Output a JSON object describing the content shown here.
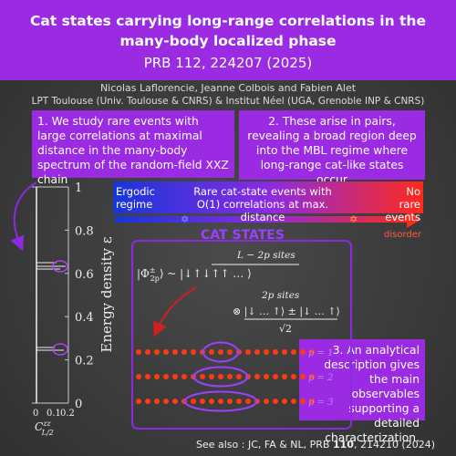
{
  "header": {
    "title": "Cat states carrying long-range correlations in the many-body localized phase",
    "reference": "PRB 112, 224207 (2025)"
  },
  "authors": "Nicolas Laflorencie, Jeanne Colbois and Fabien Alet",
  "affiliations": "LPT Toulouse (Univ. Toulouse & CNRS) & Institut Néel (UGA, Grenoble INP & CNRS)",
  "boxes": [
    "1. We study rare events with large correlations at maximal distance in the many-body spectrum of the random-field XXZ chain",
    "2. These arise in pairs, revealing a broad region deep into the MBL regime where long-range cat-like states occur",
    "3. An analytical description gives the main observables supporting a detailed characterization."
  ],
  "phase_bar": {
    "left": "Ergodic regime",
    "middle": "Rare cat-state events with O(1) correlations at max. distance",
    "right": "No rare events",
    "axis": "disorder"
  },
  "plot": {
    "y_label": "Energy density ε",
    "y_ticks": [
      0,
      0.2,
      0.4,
      0.6,
      0.8,
      1
    ],
    "x_ticks": [
      0,
      0.1,
      0.2
    ],
    "x_label": {
      "symbol": "C",
      "sup": "zz",
      "sub": "L/2"
    }
  },
  "cat_states": {
    "title": "CAT STATES",
    "top_sites": "L − 2p sites",
    "state_lhs": "|Φ",
    "state_sup": "±",
    "state_sub": "2p",
    "state_rhs": "⟩ ~ |↓↑↓↑↑ … ⟩",
    "cat_sites": "2p sites",
    "cat_numerator": "⊗ |↓ … ↑⟩ ± |↓ … ↑⟩",
    "cat_denominator": "√2",
    "rows": [
      "p = 1",
      "p = 2",
      "p = 3"
    ]
  },
  "footer": {
    "before": "See also : JC, FA & NL, PRB ",
    "volume": "110",
    "after": ", 214210 (2024)"
  }
}
